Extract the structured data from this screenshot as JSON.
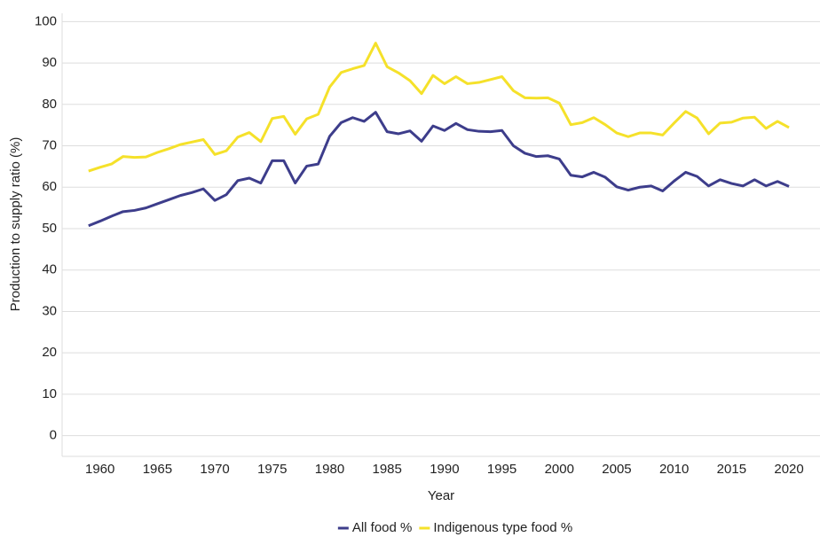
{
  "chart_data": {
    "type": "line",
    "x_label": "Year",
    "y_label": "Production to supply ratio (%)",
    "x": [
      1959,
      1960,
      1961,
      1962,
      1963,
      1964,
      1965,
      1966,
      1967,
      1968,
      1969,
      1970,
      1971,
      1972,
      1973,
      1974,
      1975,
      1976,
      1977,
      1978,
      1979,
      1980,
      1981,
      1982,
      1983,
      1984,
      1985,
      1986,
      1987,
      1988,
      1989,
      1990,
      1991,
      1992,
      1993,
      1994,
      1995,
      1996,
      1997,
      1998,
      1999,
      2000,
      2001,
      2002,
      2003,
      2004,
      2005,
      2006,
      2007,
      2008,
      2009,
      2010,
      2011,
      2012,
      2013,
      2014,
      2015,
      2016,
      2017,
      2018,
      2019,
      2020
    ],
    "series": [
      {
        "name": "All food %",
        "color": "#3d3d8b",
        "values": [
          50.7,
          51.8,
          53,
          54.1,
          54.4,
          55,
          56,
          57,
          58,
          58.7,
          59.6,
          56.8,
          58.2,
          61.6,
          62.2,
          61,
          66.4,
          66.4,
          61,
          65.1,
          65.6,
          72.3,
          75.6,
          76.8,
          75.9,
          78.1,
          73.4,
          72.9,
          73.6,
          71.1,
          74.8,
          73.7,
          75.4,
          73.9,
          73.5,
          73.4,
          73.7,
          70,
          68.2,
          67.4,
          67.6,
          66.8,
          62.9,
          62.5,
          63.6,
          62.4,
          60.1,
          59.3,
          60,
          60.3,
          59.1,
          61.5,
          63.6,
          62.6,
          60.3,
          61.8,
          60.9,
          60.3,
          61.8,
          60.3,
          61.4,
          60.2
        ]
      },
      {
        "name": "Indigenous type food %",
        "color": "#f5e12a",
        "values": [
          63.9,
          64.8,
          65.6,
          67.4,
          67.2,
          67.3,
          68.4,
          69.3,
          70.3,
          70.9,
          71.5,
          67.9,
          68.8,
          72.1,
          73.2,
          71,
          76.6,
          77.1,
          72.8,
          76.5,
          77.6,
          84.2,
          87.7,
          88.6,
          89.4,
          94.8,
          89.1,
          87.6,
          85.7,
          82.6,
          87,
          85,
          86.7,
          85,
          85.3,
          86,
          86.7,
          83.3,
          81.6,
          81.5,
          81.6,
          80.3,
          75.1,
          75.6,
          76.8,
          75.1,
          73.1,
          72.2,
          73.1,
          73.1,
          72.6,
          75.5,
          78.3,
          76.7,
          72.9,
          75.5,
          75.7,
          76.7,
          76.9,
          74.2,
          75.9,
          74.4
        ]
      }
    ],
    "xlim": [
      1956.7,
      2022.7
    ],
    "xticks": [
      1960,
      1965,
      1970,
      1975,
      1980,
      1985,
      1990,
      1995,
      2000,
      2005,
      2010,
      2015,
      2020
    ],
    "ylim": [
      -5,
      102
    ],
    "yticks": [
      0,
      10,
      20,
      30,
      40,
      50,
      60,
      70,
      80,
      90,
      100
    ],
    "grid": true,
    "legend": "bottom"
  }
}
